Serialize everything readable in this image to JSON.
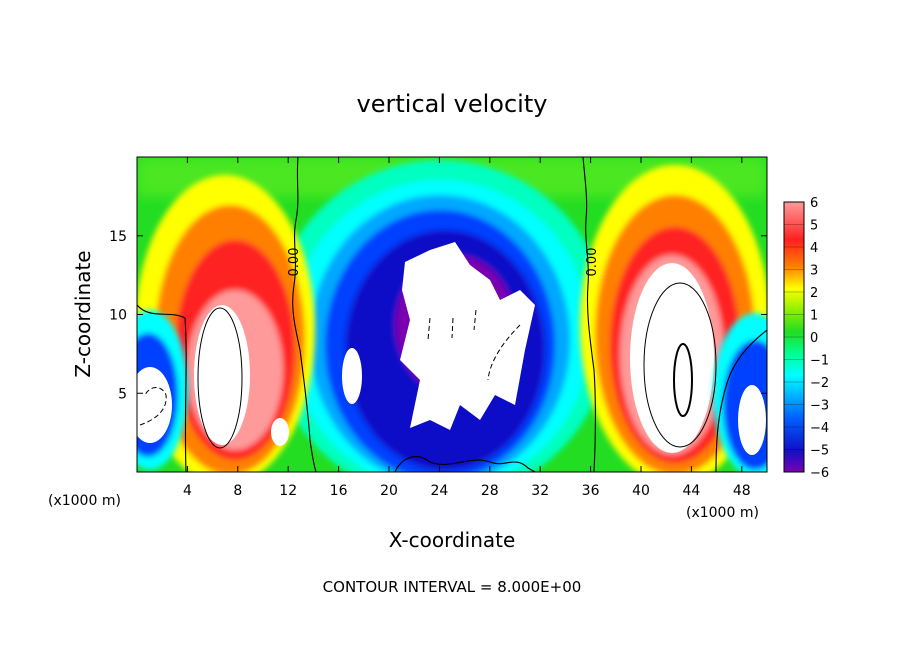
{
  "chart_data": {
    "type": "heatmap",
    "title": "vertical velocity",
    "xlabel": "X-coordinate",
    "ylabel": "Z-coordinate",
    "x_unit_label": "(x1000 m)",
    "xlim": [
      0,
      50
    ],
    "ylim": [
      0,
      20
    ],
    "x_ticks": [
      4,
      8,
      12,
      16,
      20,
      24,
      28,
      32,
      36,
      40,
      44,
      48
    ],
    "y_ticks": [
      5,
      10,
      15
    ],
    "colorbar": {
      "min": -6,
      "max": 6,
      "ticks": [
        "6",
        "5",
        "4",
        "3",
        "2",
        "1",
        "0",
        "−1",
        "−2",
        "−3",
        "−4",
        "−5",
        "−6"
      ]
    },
    "contour_interval_text": "CONTOUR INTERVAL = 8.000E+00",
    "contour_labels": [
      {
        "text": "0.00",
        "x": 12.6,
        "y": 14.0
      },
      {
        "text": "0.00",
        "x": 35.6,
        "y": 14.0
      }
    ],
    "features": [
      {
        "name": "updraft-left",
        "sign": "positive",
        "x_center": 7.5,
        "z_center": 8
      },
      {
        "name": "downdraft-center",
        "sign": "negative",
        "x_center": 25,
        "z_center": 10
      },
      {
        "name": "updraft-right",
        "sign": "positive",
        "x_center": 42.5,
        "z_center": 9
      },
      {
        "name": "downdraft-left-edge",
        "sign": "negative",
        "x_center": 1.5,
        "z_center": 5
      },
      {
        "name": "downdraft-right-edge",
        "sign": "negative",
        "x_center": 48.5,
        "z_center": 4
      }
    ],
    "colors": {
      "neg6": "#7a00b0",
      "neg5": "#1010c8",
      "neg3": "#00a8ff",
      "neg2": "#00ffff",
      "zero": "#22dd22",
      "pos2": "#ffff00",
      "pos3": "#ff8000",
      "pos4": "#ff2020",
      "pos6": "#ff9a9a",
      "saturated": "#ffffff"
    }
  }
}
